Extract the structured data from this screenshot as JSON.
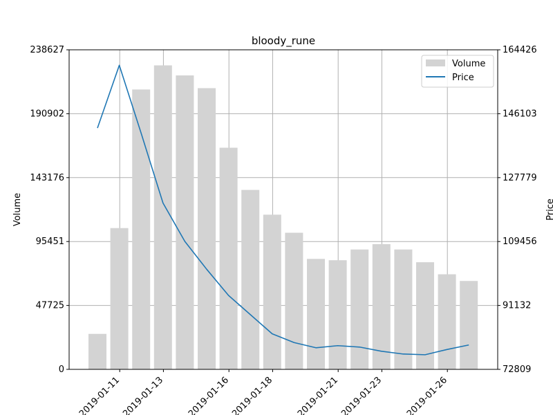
{
  "chart_data": {
    "type": "bar",
    "title": "bloody_rune",
    "ylabel_left": "Volume",
    "ylabel_right": "Price",
    "grid": true,
    "legend": {
      "position": "top-right",
      "entries": [
        "Volume",
        "Price"
      ]
    },
    "colors": {
      "volume": "#d3d3d3",
      "price": "#1f77b4",
      "grid": "#b0b0b0"
    },
    "x": [
      "2019-01-10",
      "2019-01-11",
      "2019-01-12",
      "2019-01-13",
      "2019-01-14",
      "2019-01-15",
      "2019-01-16",
      "2019-01-17",
      "2019-01-18",
      "2019-01-19",
      "2019-01-20",
      "2019-01-21",
      "2019-01-22",
      "2019-01-23",
      "2019-01-24",
      "2019-01-25",
      "2019-01-26",
      "2019-01-27"
    ],
    "xticks": [
      "2019-01-11",
      "2019-01-13",
      "2019-01-16",
      "2019-01-18",
      "2019-01-21",
      "2019-01-23",
      "2019-01-26"
    ],
    "volume_ylim": [
      0,
      238627
    ],
    "volume_yticks": [
      "0",
      "47725",
      "95451",
      "143176",
      "190902",
      "238627"
    ],
    "price_ylim": [
      72809,
      164426
    ],
    "price_yticks": [
      "72809",
      "91132",
      "109456",
      "127779",
      "146103",
      "164426"
    ],
    "series": [
      {
        "name": "Volume",
        "type": "bar",
        "axis": "left",
        "values": [
          26500,
          105500,
          209000,
          227000,
          219500,
          210000,
          165500,
          134000,
          115500,
          102000,
          82500,
          81500,
          89500,
          93500,
          89500,
          80000,
          71000,
          66000
        ]
      },
      {
        "name": "Price",
        "type": "line",
        "axis": "right",
        "values": [
          142000,
          160000,
          140500,
          120500,
          109500,
          101500,
          94000,
          88500,
          83000,
          80500,
          79000,
          79600,
          79200,
          78000,
          77200,
          77000,
          78500,
          79800
        ]
      }
    ]
  }
}
